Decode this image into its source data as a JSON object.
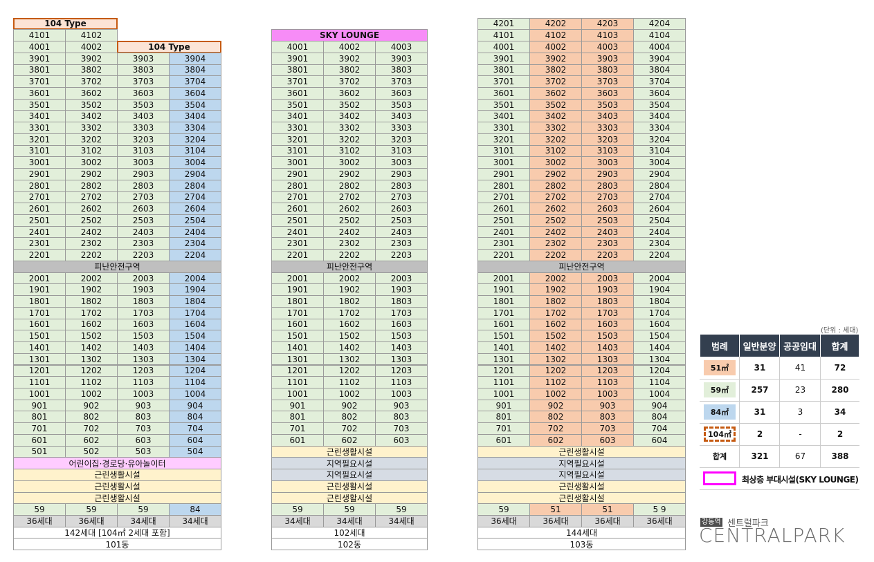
{
  "buildings": [
    {
      "name": "101동",
      "column_colors": [
        "#e2efda",
        "#e2efda",
        "#e2efda",
        "#bdd7ee"
      ],
      "rows": [
        [
          {
            "text": "104 Type",
            "span": 2,
            "fill": "#fce4d6",
            "border": "#c55a11",
            "bold": true
          }
        ],
        [
          "4101",
          "4102"
        ],
        [
          "4001",
          "4002",
          {
            "text": "104 Type",
            "span": 2,
            "fill": "#fce4d6",
            "border": "#c55a11",
            "bold": true
          }
        ],
        [
          "3901",
          "3902",
          "3903",
          "3904"
        ],
        [
          "3801",
          "3802",
          "3803",
          "3804"
        ],
        [
          "3701",
          "3702",
          "3703",
          "3704"
        ],
        [
          "3601",
          "3602",
          "3603",
          "3604"
        ],
        [
          "3501",
          "3502",
          "3503",
          "3504"
        ],
        [
          "3401",
          "3402",
          "3403",
          "3404"
        ],
        [
          "3301",
          "3302",
          "3303",
          "3304"
        ],
        [
          "3201",
          "3202",
          "3203",
          "3204"
        ],
        [
          "3101",
          "3102",
          "3103",
          "3104"
        ],
        [
          "3001",
          "3002",
          "3003",
          "3004"
        ],
        [
          "2901",
          "2902",
          "2903",
          "2904"
        ],
        [
          "2801",
          "2802",
          "2803",
          "2804"
        ],
        [
          "2701",
          "2702",
          "2703",
          "2704"
        ],
        [
          "2601",
          "2602",
          "2603",
          "2604"
        ],
        [
          "2501",
          "2502",
          "2503",
          "2504"
        ],
        [
          "2401",
          "2402",
          "2403",
          "2404"
        ],
        [
          "2301",
          "2302",
          "2303",
          "2304"
        ],
        [
          "2201",
          "2202",
          "2203",
          "2204"
        ],
        {
          "cells": [
            "피난안전구역"
          ],
          "fill": "#bfbfbf"
        },
        [
          "2001",
          "2002",
          "2003",
          "2004"
        ],
        [
          "1901",
          "1902",
          "1903",
          "1904"
        ],
        [
          "1801",
          "1802",
          "1803",
          "1804"
        ],
        [
          "1701",
          "1702",
          "1703",
          "1704"
        ],
        [
          "1601",
          "1602",
          "1603",
          "1604"
        ],
        [
          "1501",
          "1502",
          "1503",
          "1504"
        ],
        [
          "1401",
          "1402",
          "1403",
          "1404"
        ],
        [
          "1301",
          "1302",
          "1303",
          "1304"
        ],
        [
          "1201",
          "1202",
          "1203",
          "1204"
        ],
        [
          "1101",
          "1102",
          "1103",
          "1104"
        ],
        [
          "1001",
          "1002",
          "1003",
          "1004"
        ],
        [
          "901",
          "902",
          "903",
          "904"
        ],
        [
          "801",
          "802",
          "803",
          "804"
        ],
        [
          "701",
          "702",
          "703",
          "704"
        ],
        [
          "601",
          "602",
          "603",
          "604"
        ],
        [
          "501",
          "502",
          "503",
          "504"
        ],
        {
          "cells": [
            "어린이집·경로당·유아놀이터"
          ],
          "fill": "#ffccff"
        },
        {
          "cells": [
            "근린생활시설"
          ],
          "fill": "#fff2cc"
        },
        {
          "cells": [
            "근린생활시설"
          ],
          "fill": "#fff2cc"
        },
        {
          "cells": [
            "근린생활시설"
          ],
          "fill": "#fff2cc"
        },
        [
          "59",
          "59",
          "59",
          "84"
        ],
        {
          "cells": [
            "36세대",
            "36세대",
            "34세대",
            "34세대"
          ],
          "fill": "#d9d9d9"
        },
        {
          "cells": [
            "142세대 [104㎡ 2세대 포함]"
          ],
          "fill": "#ffffff"
        },
        {
          "cells": [
            "101동"
          ],
          "fill": "#ffffff"
        }
      ]
    },
    {
      "name": "102동",
      "column_colors": [
        "#e2efda",
        "#e2efda",
        "#e2efda"
      ],
      "rows": [
        {
          "cells": [
            "SKY LOUNGE"
          ],
          "fill": "#f78cf7",
          "bold": true
        },
        [
          "4001",
          "4002",
          "4003"
        ],
        [
          "3901",
          "3902",
          "3903"
        ],
        [
          "3801",
          "3802",
          "3803"
        ],
        [
          "3701",
          "3702",
          "3703"
        ],
        [
          "3601",
          "3602",
          "3603"
        ],
        [
          "3501",
          "3502",
          "3503"
        ],
        [
          "3401",
          "3402",
          "3403"
        ],
        [
          "3301",
          "3302",
          "3303"
        ],
        [
          "3201",
          "3202",
          "3203"
        ],
        [
          "3101",
          "3102",
          "3103"
        ],
        [
          "3001",
          "3002",
          "3003"
        ],
        [
          "2901",
          "2902",
          "2903"
        ],
        [
          "2801",
          "2802",
          "2803"
        ],
        [
          "2701",
          "2702",
          "2703"
        ],
        [
          "2601",
          "2602",
          "2603"
        ],
        [
          "2501",
          "2502",
          "2503"
        ],
        [
          "2401",
          "2402",
          "2403"
        ],
        [
          "2301",
          "2302",
          "2303"
        ],
        [
          "2201",
          "2202",
          "2203"
        ],
        {
          "cells": [
            "피난안전구역"
          ],
          "fill": "#bfbfbf"
        },
        [
          "2001",
          "2002",
          "2003"
        ],
        [
          "1901",
          "1902",
          "1903"
        ],
        [
          "1801",
          "1802",
          "1803"
        ],
        [
          "1701",
          "1702",
          "1703"
        ],
        [
          "1601",
          "1602",
          "1603"
        ],
        [
          "1501",
          "1502",
          "1503"
        ],
        [
          "1401",
          "1402",
          "1403"
        ],
        [
          "1301",
          "1302",
          "1303"
        ],
        [
          "1201",
          "1202",
          "1203"
        ],
        [
          "1101",
          "1102",
          "1103"
        ],
        [
          "1001",
          "1002",
          "1003"
        ],
        [
          "901",
          "902",
          "903"
        ],
        [
          "801",
          "802",
          "803"
        ],
        [
          "701",
          "702",
          "703"
        ],
        [
          "601",
          "602",
          "603"
        ],
        {
          "cells": [
            "근린생활시설"
          ],
          "fill": "#fff2cc"
        },
        {
          "cells": [
            "지역필요시설"
          ],
          "fill": "#d6dce4"
        },
        {
          "cells": [
            "지역필요시설"
          ],
          "fill": "#d6dce4"
        },
        {
          "cells": [
            "근린생활시설"
          ],
          "fill": "#fff2cc"
        },
        {
          "cells": [
            "근린생활시설"
          ],
          "fill": "#fff2cc"
        },
        [
          "59",
          "59",
          "59"
        ],
        {
          "cells": [
            "34세대",
            "34세대",
            "34세대"
          ],
          "fill": "#d9d9d9"
        },
        {
          "cells": [
            "102세대"
          ],
          "fill": "#ffffff"
        },
        {
          "cells": [
            "102동"
          ],
          "fill": "#ffffff"
        }
      ]
    },
    {
      "name": "103동",
      "column_colors": [
        "#e2efda",
        "#f8cbad",
        "#f8cbad",
        "#e2efda"
      ],
      "rows": [
        [
          "4201",
          "4202",
          "4203",
          "4204"
        ],
        [
          "4101",
          "4102",
          "4103",
          "4104"
        ],
        [
          "4001",
          "4002",
          "4003",
          "4004"
        ],
        [
          "3901",
          "3902",
          "3903",
          "3904"
        ],
        [
          "3801",
          "3802",
          "3803",
          "3804"
        ],
        [
          "3701",
          "3702",
          "3703",
          "3704"
        ],
        [
          "3601",
          "3602",
          "3603",
          "3604"
        ],
        [
          "3501",
          "3502",
          "3503",
          "3504"
        ],
        [
          "3401",
          "3402",
          "3403",
          "3404"
        ],
        [
          "3301",
          "3302",
          "3303",
          "3304"
        ],
        [
          "3201",
          "3202",
          "3203",
          "3204"
        ],
        [
          "3101",
          "3102",
          "3103",
          "3104"
        ],
        [
          "3001",
          "3002",
          "3003",
          "3004"
        ],
        [
          "2901",
          "2902",
          "2903",
          "2904"
        ],
        [
          "2801",
          "2802",
          "2803",
          "2804"
        ],
        [
          "2701",
          "2702",
          "2703",
          "2704"
        ],
        [
          "2601",
          "2602",
          "2603",
          "2604"
        ],
        [
          "2501",
          "2502",
          "2503",
          "2504"
        ],
        [
          "2401",
          "2402",
          "2403",
          "2404"
        ],
        [
          "2301",
          "2302",
          "2303",
          "2304"
        ],
        [
          "2201",
          "2202",
          "2203",
          "2204"
        ],
        {
          "cells": [
            "피난안전구역"
          ],
          "fill": "#bfbfbf"
        },
        [
          "2001",
          "2002",
          "2003",
          "2004"
        ],
        [
          "1901",
          "1902",
          "1903",
          "1904"
        ],
        [
          "1801",
          "1802",
          "1803",
          "1804"
        ],
        [
          "1701",
          "1702",
          "1703",
          "1704"
        ],
        [
          "1601",
          "1602",
          "1603",
          "1604"
        ],
        [
          "1501",
          "1502",
          "1503",
          "1504"
        ],
        [
          "1401",
          "1402",
          "1403",
          "1404"
        ],
        [
          "1301",
          "1302",
          "1303",
          "1304"
        ],
        [
          "1201",
          "1202",
          "1203",
          "1204"
        ],
        [
          "1101",
          "1102",
          "1103",
          "1104"
        ],
        [
          "1001",
          "1002",
          "1003",
          "1004"
        ],
        [
          "901",
          "902",
          "903",
          "904"
        ],
        [
          "801",
          "802",
          "803",
          "804"
        ],
        [
          "701",
          "702",
          "703",
          "704"
        ],
        [
          "601",
          "602",
          "603",
          "604"
        ],
        {
          "cells": [
            "근린생활시설"
          ],
          "fill": "#fff2cc"
        },
        {
          "cells": [
            "지역필요시설"
          ],
          "fill": "#d6dce4"
        },
        {
          "cells": [
            "지역필요시설"
          ],
          "fill": "#d6dce4"
        },
        {
          "cells": [
            "근린생활시설"
          ],
          "fill": "#fff2cc"
        },
        {
          "cells": [
            "근린생활시설"
          ],
          "fill": "#fff2cc"
        },
        [
          "59",
          "51",
          "51",
          "5 9"
        ],
        {
          "cells": [
            "36세대",
            "36세대",
            "36세대",
            "36세대"
          ],
          "fill": "#d9d9d9"
        },
        {
          "cells": [
            "144세대"
          ],
          "fill": "#ffffff"
        },
        {
          "cells": [
            "103동"
          ],
          "fill": "#ffffff"
        }
      ]
    }
  ],
  "legend": {
    "unit_note": "(단위 : 세대)",
    "header": [
      "범례",
      "일반분양",
      "공공임대",
      "합계"
    ],
    "header_fill": "#333f4f",
    "rows": [
      {
        "label": "51㎡",
        "fill": "#f8cbad",
        "cells": [
          "31",
          "41",
          "72"
        ]
      },
      {
        "label": "59㎡",
        "fill": "#e2efda",
        "cells": [
          "257",
          "23",
          "280"
        ]
      },
      {
        "label": "84㎡",
        "fill": "#bdd7ee",
        "cells": [
          "31",
          "3",
          "34"
        ]
      },
      {
        "label": "104㎡",
        "border": "#c55a11",
        "cells": [
          "2",
          "-",
          "2"
        ]
      },
      {
        "label": "합계",
        "cells": [
          "321",
          "67",
          "388"
        ]
      }
    ],
    "sky_lounge": {
      "border": "#ff00ff",
      "text": "최상층 부대시설(SKY LOUNGE)"
    }
  },
  "logo": {
    "station": "강동역",
    "name": "센트럴파크",
    "brand": "CENTRALPARK"
  }
}
